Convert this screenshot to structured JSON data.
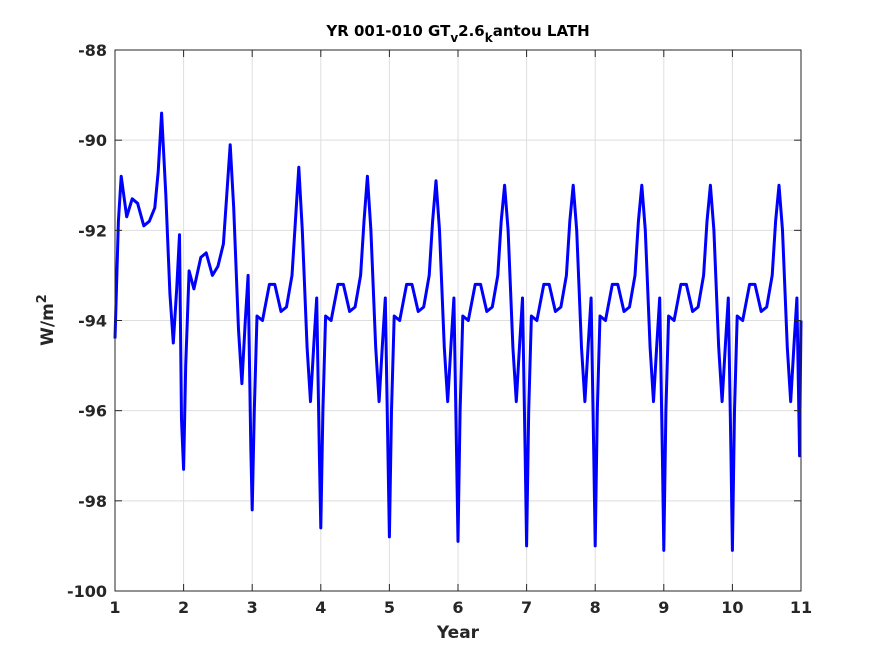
{
  "chart_data": {
    "type": "line",
    "title_parts": {
      "pre": "YR 001-010 GT",
      "sub1": "v",
      "mid": "2.6",
      "sub2": "k",
      "post": "antou LATH"
    },
    "xlabel": "Year",
    "ylabel_base": "W/m",
    "ylabel_sup": "2",
    "xlim": [
      1,
      11
    ],
    "ylim": [
      -100,
      -88
    ],
    "xticks": [
      1,
      2,
      3,
      4,
      5,
      6,
      7,
      8,
      9,
      10,
      11
    ],
    "yticks": [
      -100,
      -98,
      -96,
      -94,
      -92,
      -90,
      -88
    ],
    "grid": true,
    "series_color": "#0000ff",
    "period_pattern": {
      "year1": [
        [
          1.0,
          -94.4
        ],
        [
          1.05,
          -91.8
        ],
        [
          1.09,
          -90.8
        ],
        [
          1.17,
          -91.7
        ],
        [
          1.25,
          -91.3
        ],
        [
          1.33,
          -91.4
        ],
        [
          1.42,
          -91.9
        ],
        [
          1.5,
          -91.8
        ],
        [
          1.58,
          -91.5
        ],
        [
          1.63,
          -90.7
        ],
        [
          1.68,
          -89.4
        ],
        [
          1.74,
          -91.2
        ],
        [
          1.8,
          -93.4
        ],
        [
          1.85,
          -94.5
        ],
        [
          1.9,
          -93.3
        ],
        [
          1.94,
          -92.1
        ],
        [
          1.97,
          -96.2
        ],
        [
          2.0,
          -97.3
        ]
      ],
      "year2": [
        [
          2.0,
          -97.3
        ],
        [
          2.03,
          -95.0
        ],
        [
          2.08,
          -92.9
        ],
        [
          2.15,
          -93.3
        ],
        [
          2.25,
          -92.6
        ],
        [
          2.33,
          -92.5
        ],
        [
          2.42,
          -93.0
        ],
        [
          2.5,
          -92.8
        ],
        [
          2.58,
          -92.3
        ],
        [
          2.63,
          -91.2
        ],
        [
          2.68,
          -90.1
        ],
        [
          2.73,
          -91.5
        ],
        [
          2.8,
          -94.2
        ],
        [
          2.85,
          -95.4
        ],
        [
          2.9,
          -94.0
        ],
        [
          2.94,
          -93.0
        ],
        [
          2.98,
          -96.8
        ],
        [
          3.0,
          -98.2
        ]
      ]
    },
    "steady_cycle": {
      "start_offset": 0,
      "points": [
        [
          0.0,
          -98.6
        ],
        [
          0.03,
          -96.0
        ],
        [
          0.07,
          -93.9
        ],
        [
          0.15,
          -94.0
        ],
        [
          0.25,
          -93.2
        ],
        [
          0.33,
          -93.2
        ],
        [
          0.42,
          -93.8
        ],
        [
          0.5,
          -93.7
        ],
        [
          0.58,
          -93.0
        ],
        [
          0.63,
          -91.8
        ],
        [
          0.68,
          -90.7
        ],
        [
          0.73,
          -92.0
        ],
        [
          0.8,
          -94.6
        ],
        [
          0.85,
          -95.8
        ],
        [
          0.9,
          -94.5
        ],
        [
          0.94,
          -93.5
        ],
        [
          0.98,
          -97.0
        ],
        [
          1.0,
          -98.6
        ]
      ]
    },
    "cycle_dips": [
      {
        "year": 3,
        "min": -98.2,
        "peak": -90.6
      },
      {
        "year": 4,
        "min": -98.6,
        "peak": -90.8
      },
      {
        "year": 5,
        "min": -98.8,
        "peak": -90.9
      },
      {
        "year": 6,
        "min": -98.9,
        "peak": -91.0
      },
      {
        "year": 7,
        "min": -99.0,
        "peak": -91.0
      },
      {
        "year": 8,
        "min": -99.0,
        "peak": -91.0
      },
      {
        "year": 9,
        "min": -99.1,
        "peak": -91.0
      },
      {
        "year": 10,
        "min": -99.1,
        "peak": -91.0
      }
    ],
    "end_value": -94.0
  }
}
